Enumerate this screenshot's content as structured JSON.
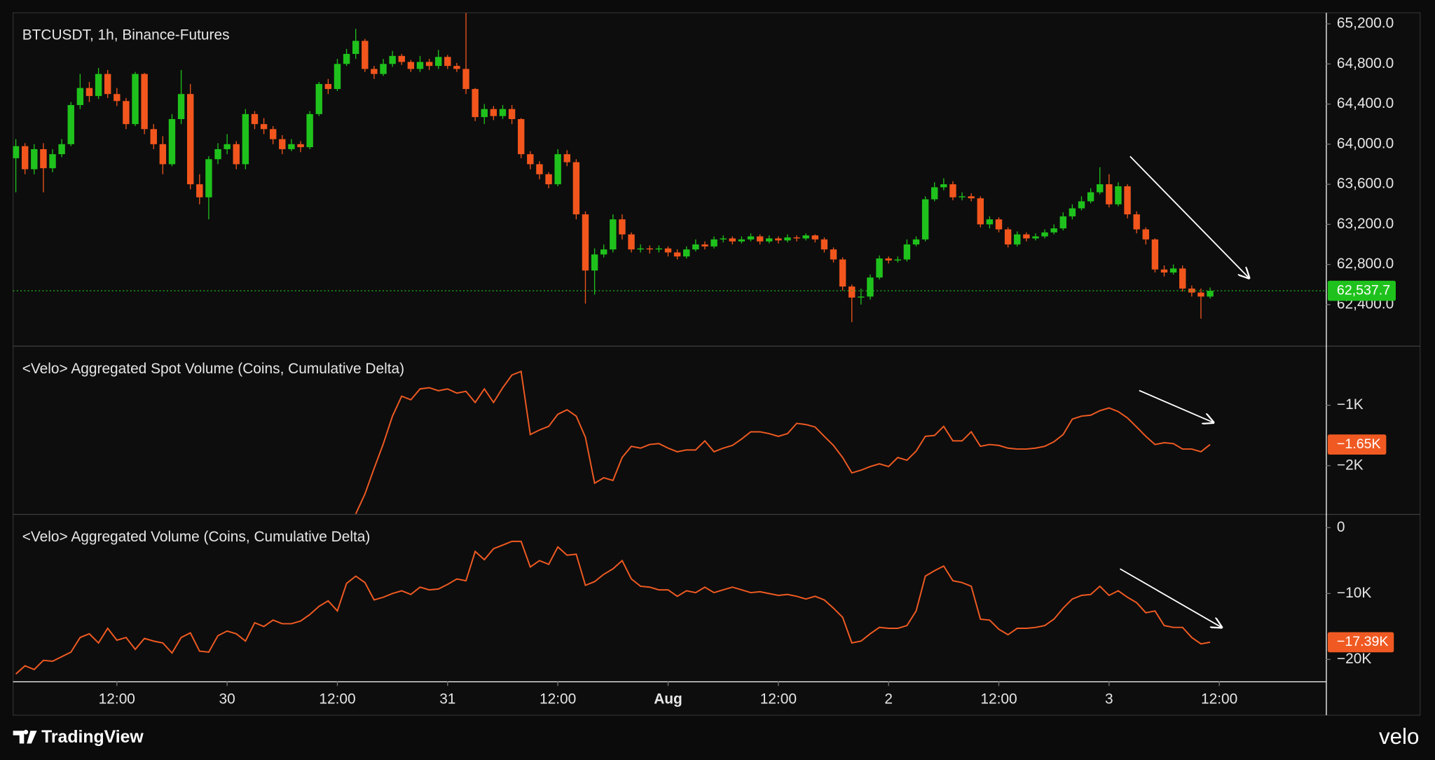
{
  "chart_data": [
    {
      "type": "candlestick",
      "title": "BTCUSDT, 1h, Binance-Futures",
      "up_color": "#1fc21c",
      "down_color": "#f2561d",
      "ylim": [
        61990,
        65310
      ],
      "yticks": [
        {
          "value": 65200,
          "label": "65,200.0"
        },
        {
          "value": 64800,
          "label": "64,800.0"
        },
        {
          "value": 64400,
          "label": "64,400.0"
        },
        {
          "value": 64000,
          "label": "64,000.0"
        },
        {
          "value": 63600,
          "label": "63,600.0"
        },
        {
          "value": 63200,
          "label": "63,200.0"
        },
        {
          "value": 62800,
          "label": "62,800.0"
        },
        {
          "value": 62400,
          "label": "62,400.0"
        }
      ],
      "last_price_label": "62,537.7",
      "candles": [
        [
          63860,
          64050,
          63520,
          63980
        ],
        [
          63980,
          64010,
          63700,
          63750
        ],
        [
          63750,
          64000,
          63700,
          63950
        ],
        [
          63950,
          64010,
          63520,
          63760
        ],
        [
          63760,
          63950,
          63720,
          63900
        ],
        [
          63900,
          64050,
          63870,
          64000
        ],
        [
          64000,
          64420,
          63980,
          64390
        ],
        [
          64390,
          64700,
          64350,
          64560
        ],
        [
          64560,
          64620,
          64420,
          64480
        ],
        [
          64480,
          64760,
          64450,
          64700
        ],
        [
          64700,
          64740,
          64460,
          64500
        ],
        [
          64500,
          64560,
          64380,
          64430
        ],
        [
          64430,
          64460,
          64150,
          64200
        ],
        [
          64200,
          64720,
          64180,
          64700
        ],
        [
          64700,
          64710,
          64100,
          64150
        ],
        [
          64150,
          64200,
          63950,
          64000
        ],
        [
          64000,
          64080,
          63700,
          63800
        ],
        [
          63800,
          64300,
          63780,
          64250
        ],
        [
          64250,
          64740,
          64200,
          64500
        ],
        [
          64500,
          64600,
          63550,
          63600
        ],
        [
          63600,
          63700,
          63400,
          63470
        ],
        [
          63470,
          63880,
          63250,
          63850
        ],
        [
          63850,
          64010,
          63800,
          63950
        ],
        [
          63950,
          64100,
          63900,
          64000
        ],
        [
          64000,
          64030,
          63750,
          63800
        ],
        [
          63800,
          64350,
          63750,
          64300
        ],
        [
          64300,
          64330,
          64150,
          64200
        ],
        [
          64200,
          64260,
          64100,
          64150
        ],
        [
          64150,
          64180,
          64000,
          64050
        ],
        [
          64050,
          64090,
          63900,
          63950
        ],
        [
          63950,
          64050,
          63930,
          64000
        ],
        [
          64000,
          64030,
          63920,
          63970
        ],
        [
          63970,
          64330,
          63950,
          64300
        ],
        [
          64300,
          64620,
          64280,
          64600
        ],
        [
          64600,
          64650,
          64500,
          64550
        ],
        [
          64550,
          64850,
          64530,
          64800
        ],
        [
          64800,
          64950,
          64780,
          64900
        ],
        [
          64900,
          65150,
          64850,
          65030
        ],
        [
          65030,
          65050,
          64720,
          64750
        ],
        [
          64750,
          64780,
          64650,
          64700
        ],
        [
          64700,
          64850,
          64680,
          64800
        ],
        [
          64800,
          64930,
          64770,
          64880
        ],
        [
          64880,
          64900,
          64790,
          64820
        ],
        [
          64820,
          64840,
          64720,
          64750
        ],
        [
          64750,
          64880,
          64720,
          64820
        ],
        [
          64820,
          64850,
          64740,
          64780
        ],
        [
          64780,
          64940,
          64750,
          64870
        ],
        [
          64870,
          64890,
          64750,
          64780
        ],
        [
          64780,
          64810,
          64720,
          64750
        ],
        [
          64750,
          65310,
          64500,
          64550
        ],
        [
          64550,
          64560,
          64230,
          64270
        ],
        [
          64270,
          64400,
          64200,
          64350
        ],
        [
          64350,
          64380,
          64240,
          64280
        ],
        [
          64280,
          64390,
          64250,
          64350
        ],
        [
          64350,
          64390,
          64200,
          64250
        ],
        [
          64250,
          64260,
          63860,
          63900
        ],
        [
          63900,
          63930,
          63750,
          63800
        ],
        [
          63800,
          63830,
          63650,
          63700
        ],
        [
          63700,
          63720,
          63560,
          63600
        ],
        [
          63600,
          63950,
          63580,
          63900
        ],
        [
          63900,
          63940,
          63780,
          63820
        ],
        [
          63820,
          63850,
          63250,
          63300
        ],
        [
          63300,
          63330,
          62410,
          62740
        ],
        [
          62740,
          62960,
          62500,
          62900
        ],
        [
          62900,
          63000,
          62870,
          62950
        ],
        [
          62950,
          63300,
          62920,
          63250
        ],
        [
          63250,
          63300,
          63050,
          63100
        ],
        [
          63100,
          63120,
          62920,
          62950
        ],
        [
          62950,
          63000,
          62920,
          62960
        ],
        [
          62960,
          62990,
          62910,
          62950
        ],
        [
          62950,
          62990,
          62920,
          62960
        ],
        [
          62960,
          62980,
          62880,
          62920
        ],
        [
          62920,
          62950,
          62850,
          62880
        ],
        [
          62880,
          62980,
          62860,
          62950
        ],
        [
          62950,
          63050,
          62930,
          63000
        ],
        [
          63000,
          63030,
          62950,
          62980
        ],
        [
          62980,
          63080,
          62960,
          63050
        ],
        [
          63050,
          63090,
          63020,
          63060
        ],
        [
          63060,
          63080,
          63000,
          63030
        ],
        [
          63030,
          63080,
          63010,
          63050
        ],
        [
          63050,
          63110,
          63030,
          63080
        ],
        [
          63080,
          63100,
          63000,
          63030
        ],
        [
          63030,
          63090,
          63010,
          63060
        ],
        [
          63060,
          63080,
          63010,
          63040
        ],
        [
          63040,
          63100,
          63020,
          63070
        ],
        [
          63070,
          63090,
          63030,
          63060
        ],
        [
          63060,
          63110,
          63040,
          63090
        ],
        [
          63090,
          63100,
          63020,
          63050
        ],
        [
          63050,
          63070,
          62920,
          62950
        ],
        [
          62950,
          62970,
          62820,
          62850
        ],
        [
          62850,
          62870,
          62540,
          62580
        ],
        [
          62580,
          62600,
          62225,
          62470
        ],
        [
          62470,
          62560,
          62400,
          62480
        ],
        [
          62480,
          62700,
          62450,
          62670
        ],
        [
          62670,
          62890,
          62650,
          62860
        ],
        [
          62860,
          62880,
          62810,
          62840
        ],
        [
          62840,
          62880,
          62820,
          62850
        ],
        [
          62850,
          63050,
          62830,
          63000
        ],
        [
          63000,
          63080,
          62980,
          63050
        ],
        [
          63050,
          63480,
          63030,
          63450
        ],
        [
          63450,
          63620,
          63430,
          63570
        ],
        [
          63570,
          63660,
          63540,
          63600
        ],
        [
          63600,
          63630,
          63440,
          63470
        ],
        [
          63470,
          63520,
          63440,
          63480
        ],
        [
          63480,
          63510,
          63430,
          63460
        ],
        [
          63460,
          63480,
          63170,
          63200
        ],
        [
          63200,
          63280,
          63160,
          63250
        ],
        [
          63250,
          63270,
          63120,
          63150
        ],
        [
          63150,
          63170,
          62970,
          63000
        ],
        [
          63000,
          63130,
          62980,
          63100
        ],
        [
          63100,
          63120,
          63030,
          63060
        ],
        [
          63060,
          63110,
          63040,
          63080
        ],
        [
          63080,
          63150,
          63060,
          63120
        ],
        [
          63120,
          63200,
          63100,
          63160
        ],
        [
          63160,
          63320,
          63140,
          63280
        ],
        [
          63280,
          63400,
          63250,
          63360
        ],
        [
          63360,
          63480,
          63340,
          63430
        ],
        [
          63430,
          63560,
          63410,
          63520
        ],
        [
          63520,
          63770,
          63500,
          63600
        ],
        [
          63600,
          63700,
          63370,
          63400
        ],
        [
          63400,
          63620,
          63380,
          63580
        ],
        [
          63580,
          63600,
          63260,
          63300
        ],
        [
          63300,
          63330,
          63110,
          63150
        ],
        [
          63150,
          63170,
          63000,
          63050
        ],
        [
          63050,
          63060,
          62720,
          62750
        ],
        [
          62750,
          62790,
          62680,
          62720
        ],
        [
          62720,
          62800,
          62700,
          62760
        ],
        [
          62760,
          62790,
          62530,
          62560
        ],
        [
          62560,
          62590,
          62480,
          62520
        ],
        [
          62520,
          62560,
          62260,
          62480
        ],
        [
          62480,
          62570,
          62460,
          62537.7
        ]
      ]
    },
    {
      "type": "line",
      "title": "<Velo> Aggregated Spot Volume (Coins, Cumulative Delta)",
      "color": "#f05a22",
      "ylim": [
        -2800,
        -30
      ],
      "yticks": [
        {
          "value": -1000,
          "label": "−1K"
        },
        {
          "value": -2000,
          "label": "−2K"
        }
      ],
      "last_label": "−1.65K",
      "values": [
        null,
        null,
        null,
        null,
        null,
        null,
        null,
        null,
        null,
        null,
        null,
        null,
        null,
        null,
        null,
        null,
        null,
        null,
        null,
        null,
        null,
        null,
        null,
        null,
        null,
        null,
        null,
        null,
        null,
        null,
        null,
        null,
        null,
        null,
        null,
        null,
        null,
        -2800,
        -2470,
        -2045,
        -1640,
        -1180,
        -850,
        -910,
        -730,
        -710,
        -760,
        -730,
        -800,
        -770,
        -955,
        -730,
        -955,
        -710,
        -500,
        -440,
        -1485,
        -1410,
        -1350,
        -1150,
        -1075,
        -1180,
        -1530,
        -2290,
        -2200,
        -2245,
        -1865,
        -1680,
        -1710,
        -1650,
        -1635,
        -1710,
        -1770,
        -1740,
        -1740,
        -1590,
        -1770,
        -1710,
        -1665,
        -1560,
        -1440,
        -1440,
        -1470,
        -1515,
        -1470,
        -1300,
        -1320,
        -1360,
        -1515,
        -1665,
        -1865,
        -2120,
        -2075,
        -2015,
        -1970,
        -2015,
        -1865,
        -1910,
        -1760,
        -1515,
        -1500,
        -1350,
        -1590,
        -1590,
        -1440,
        -1680,
        -1650,
        -1665,
        -1710,
        -1725,
        -1725,
        -1710,
        -1680,
        -1605,
        -1485,
        -1230,
        -1180,
        -1165,
        -1090,
        -1045,
        -1105,
        -1210,
        -1360,
        -1515,
        -1650,
        -1620,
        -1635,
        -1725,
        -1725,
        -1770,
        -1650
      ]
    },
    {
      "type": "line",
      "title": "<Velo> Aggregated Volume (Coins, Cumulative Delta)",
      "color": "#f05a22",
      "ylim": [
        -23330,
        1940
      ],
      "yticks": [
        0,
        {
          "value": -10000,
          "label": "−10K"
        },
        {
          "value": -20000,
          "label": "−20K"
        }
      ],
      "last_label": "−17.39K",
      "values": [
        -22220,
        -20970,
        -21530,
        -20140,
        -20280,
        -19580,
        -18890,
        -16670,
        -16110,
        -17500,
        -15280,
        -17080,
        -16670,
        -18470,
        -16810,
        -17220,
        -17500,
        -19030,
        -16670,
        -15970,
        -18750,
        -18890,
        -16390,
        -15690,
        -16110,
        -17220,
        -14440,
        -15000,
        -14030,
        -14580,
        -14580,
        -14170,
        -13190,
        -11940,
        -11110,
        -12640,
        -8470,
        -7360,
        -8330,
        -10970,
        -10560,
        -10000,
        -9580,
        -10140,
        -9030,
        -9440,
        -9310,
        -8610,
        -7780,
        -8060,
        -3610,
        -4860,
        -3190,
        -2640,
        -2080,
        -2080,
        -5970,
        -5000,
        -5560,
        -2920,
        -4170,
        -4030,
        -8750,
        -8190,
        -7080,
        -6250,
        -5000,
        -7780,
        -8890,
        -9030,
        -9440,
        -9440,
        -10420,
        -9580,
        -9860,
        -9030,
        -9860,
        -9440,
        -9030,
        -9440,
        -9860,
        -9720,
        -10000,
        -10280,
        -10140,
        -10420,
        -10830,
        -10420,
        -10970,
        -12220,
        -13610,
        -17500,
        -17220,
        -16110,
        -15140,
        -15280,
        -15280,
        -14860,
        -12640,
        -7360,
        -6530,
        -5830,
        -8060,
        -8330,
        -8890,
        -13890,
        -14030,
        -15420,
        -16250,
        -15280,
        -15280,
        -15140,
        -14860,
        -13890,
        -12220,
        -10830,
        -10280,
        -10140,
        -8890,
        -10280,
        -9580,
        -10560,
        -11390,
        -12920,
        -12640,
        -14860,
        -15140,
        -15140,
        -16670,
        -17640,
        -17390
      ]
    }
  ],
  "x_axis": {
    "xlim": [
      -0.3,
      142.6
    ],
    "xticks": [
      {
        "value": 11,
        "label": "12:00"
      },
      {
        "value": 23,
        "label": "30"
      },
      {
        "value": 35,
        "label": "12:00"
      },
      {
        "value": 47,
        "label": "31"
      },
      {
        "value": 59,
        "label": "12:00"
      },
      {
        "value": 71,
        "label": "Aug"
      },
      {
        "value": 83,
        "label": "12:00"
      },
      {
        "value": 95,
        "label": "2"
      },
      {
        "value": 107,
        "label": "12:00"
      },
      {
        "value": 119,
        "label": "3"
      },
      {
        "value": 131,
        "label": "12:00"
      }
    ]
  },
  "footer": {
    "left": "TradingView",
    "right": "velo"
  }
}
